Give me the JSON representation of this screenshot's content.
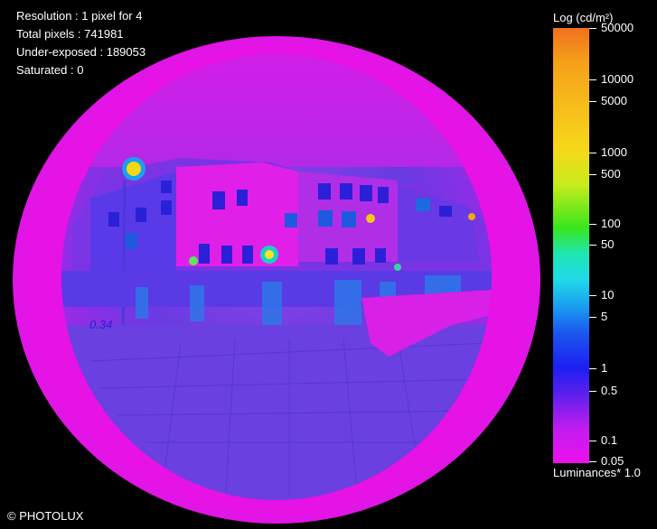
{
  "stats": {
    "resolution": "Resolution : 1 pixel for 4",
    "total_pixels": "Total pixels : 741981",
    "under_exposed": "Under-exposed : 189053",
    "saturated": "Saturated : 0"
  },
  "scale": {
    "title": "Log (cd/m²)",
    "ticks": [
      "50000",
      "10000",
      "5000",
      "1000",
      "500",
      "100",
      "50",
      "10",
      "5",
      "1",
      "0.5",
      "0.1",
      "0.05"
    ],
    "footer": "Luminances* 1.0"
  },
  "image": {
    "annotation": "0.34"
  },
  "copyright": "© PHOTOLUX",
  "colors": {
    "background": "#000000",
    "colorbar_top": "#f0701e",
    "colorbar_bottom": "#ee10ee",
    "fisheye_outer_ring": "#e612e6",
    "fisheye_interior": "#7a3ae0",
    "annotation": "#2a1fd0"
  }
}
